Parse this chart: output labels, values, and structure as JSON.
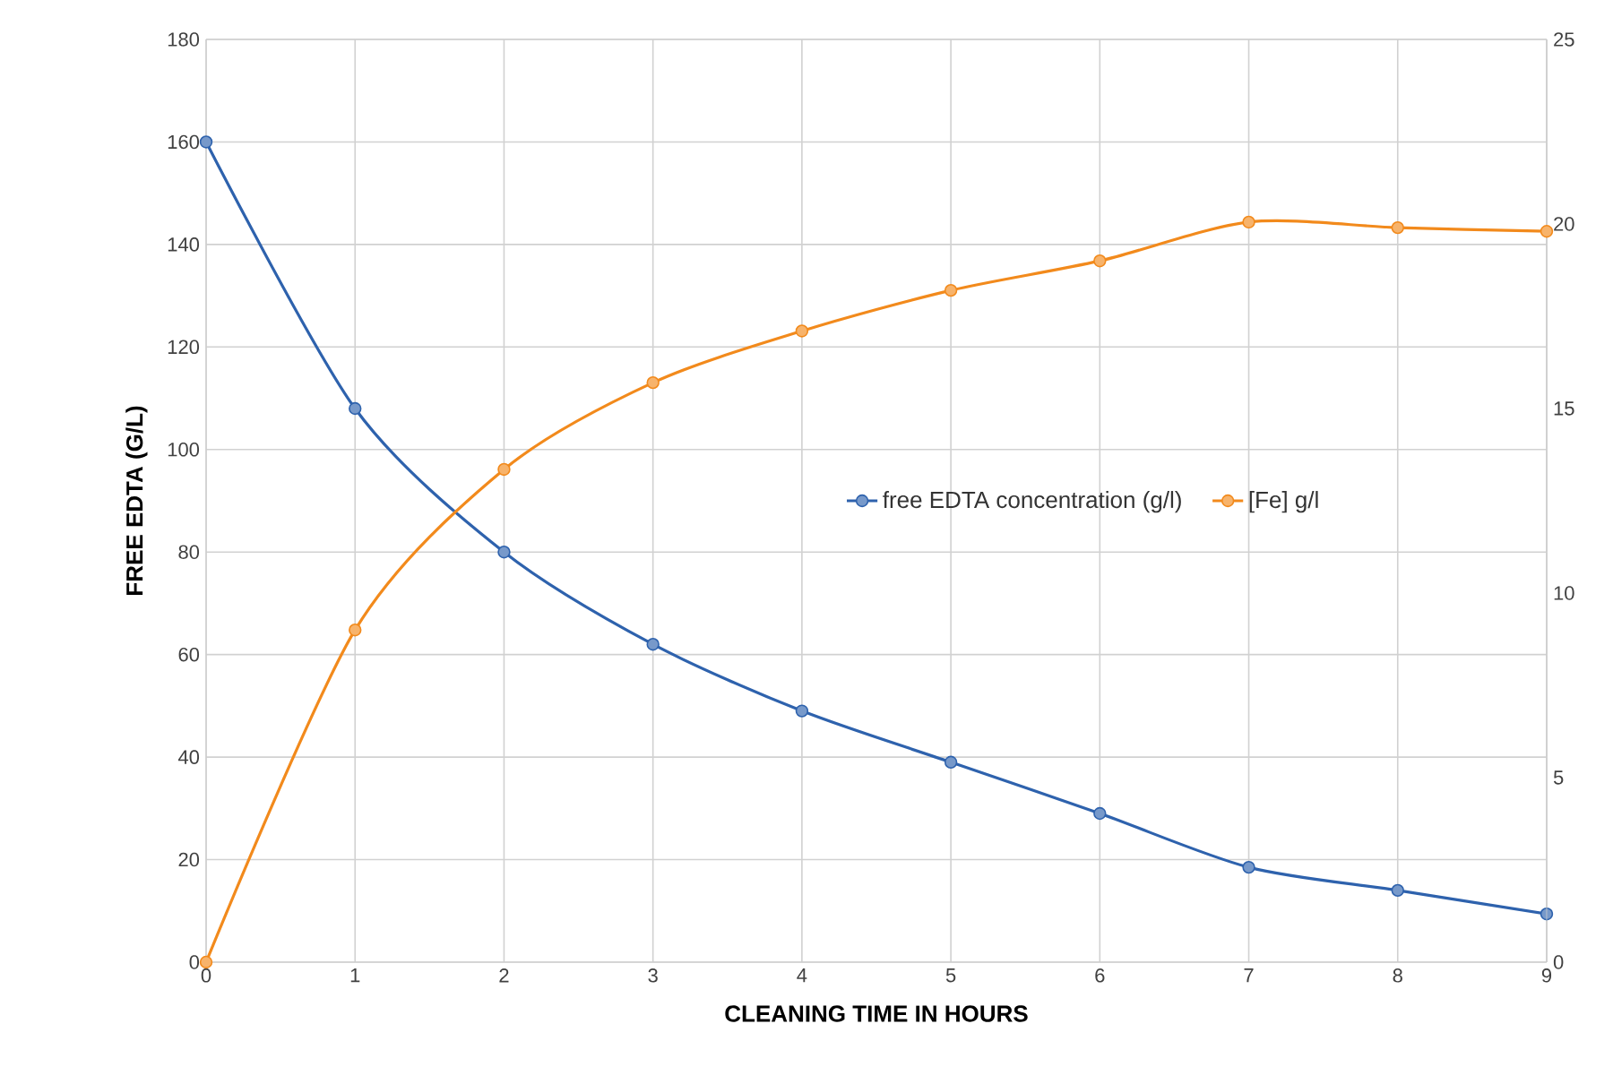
{
  "chart_data": {
    "type": "line",
    "xlabel": "CLEANING TIME IN HOURS",
    "ylabel": "FREE EDTA (G/L)",
    "x": [
      0,
      1,
      2,
      3,
      4,
      5,
      6,
      7,
      8,
      9
    ],
    "series": [
      {
        "name": "free EDTA concentration (g/l)",
        "color": "#2e62ad",
        "values": [
          160,
          108,
          80,
          62,
          49,
          39,
          29,
          18.5,
          14,
          9.4
        ]
      },
      {
        "name": "[Fe] g/l",
        "color": "#f28a1c",
        "axis": "y2",
        "values": [
          0,
          9.0,
          13.35,
          15.7,
          17.1,
          18.2,
          19.0,
          20.05,
          19.9,
          19.8
        ]
      }
    ],
    "xlim": [
      0,
      9
    ],
    "xticks": [
      0,
      1,
      2,
      3,
      4,
      5,
      6,
      7,
      8,
      9
    ],
    "ylim": [
      0,
      180
    ],
    "yticks": [
      0,
      20,
      40,
      60,
      80,
      100,
      120,
      140,
      160,
      180
    ],
    "y2lim": [
      0,
      25
    ],
    "y2ticks": [
      0,
      5,
      10,
      15,
      20,
      25
    ],
    "grid": true,
    "legend": "right",
    "marker": "circle",
    "line_style": "solid"
  }
}
